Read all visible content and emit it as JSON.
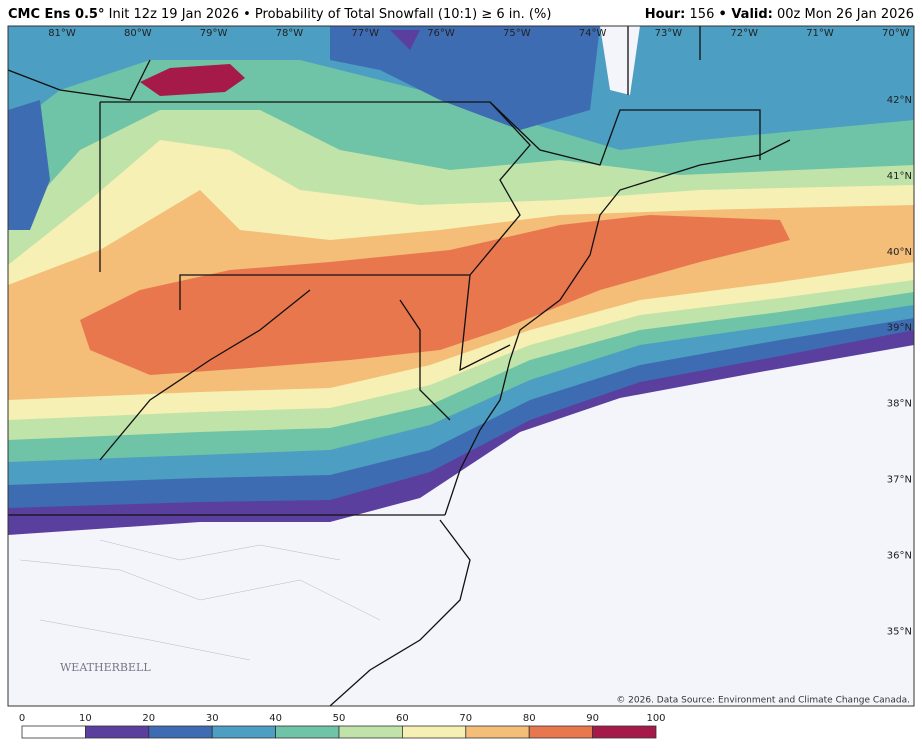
{
  "header": {
    "model": "CMC Ens 0.5°",
    "description": "Init 12z 19 Jan 2026 • Probability of Total Snowfall (10:1) ≥ 6 in. (%)",
    "hour_label": "Hour:",
    "hour": "156",
    "valid_label": "• Valid:",
    "valid": "00z Mon 26 Jan 2026"
  },
  "map": {
    "longitudes": [
      "81°W",
      "80°W",
      "79°W",
      "78°W",
      "77°W",
      "76°W",
      "75°W",
      "74°W",
      "73°W",
      "72°W",
      "71°W",
      "70°W"
    ],
    "latitudes": [
      "42°N",
      "41°N",
      "40°N",
      "39°N",
      "38°N",
      "37°N",
      "36°N",
      "35°N"
    ],
    "credit": "© 2026. Data Source: Environment and Climate Change Canada.",
    "logo": "WEATHERBELL"
  },
  "legend": {
    "ticks": [
      0,
      10,
      20,
      30,
      40,
      50,
      60,
      70,
      80,
      90,
      100
    ],
    "colors": [
      "#ffffff",
      "#5b3f9e",
      "#3e6cb3",
      "#4c9ec2",
      "#6fc3a6",
      "#bfe3a9",
      "#f7f0b4",
      "#f4bd78",
      "#e9774e",
      "#a51a49"
    ]
  }
}
